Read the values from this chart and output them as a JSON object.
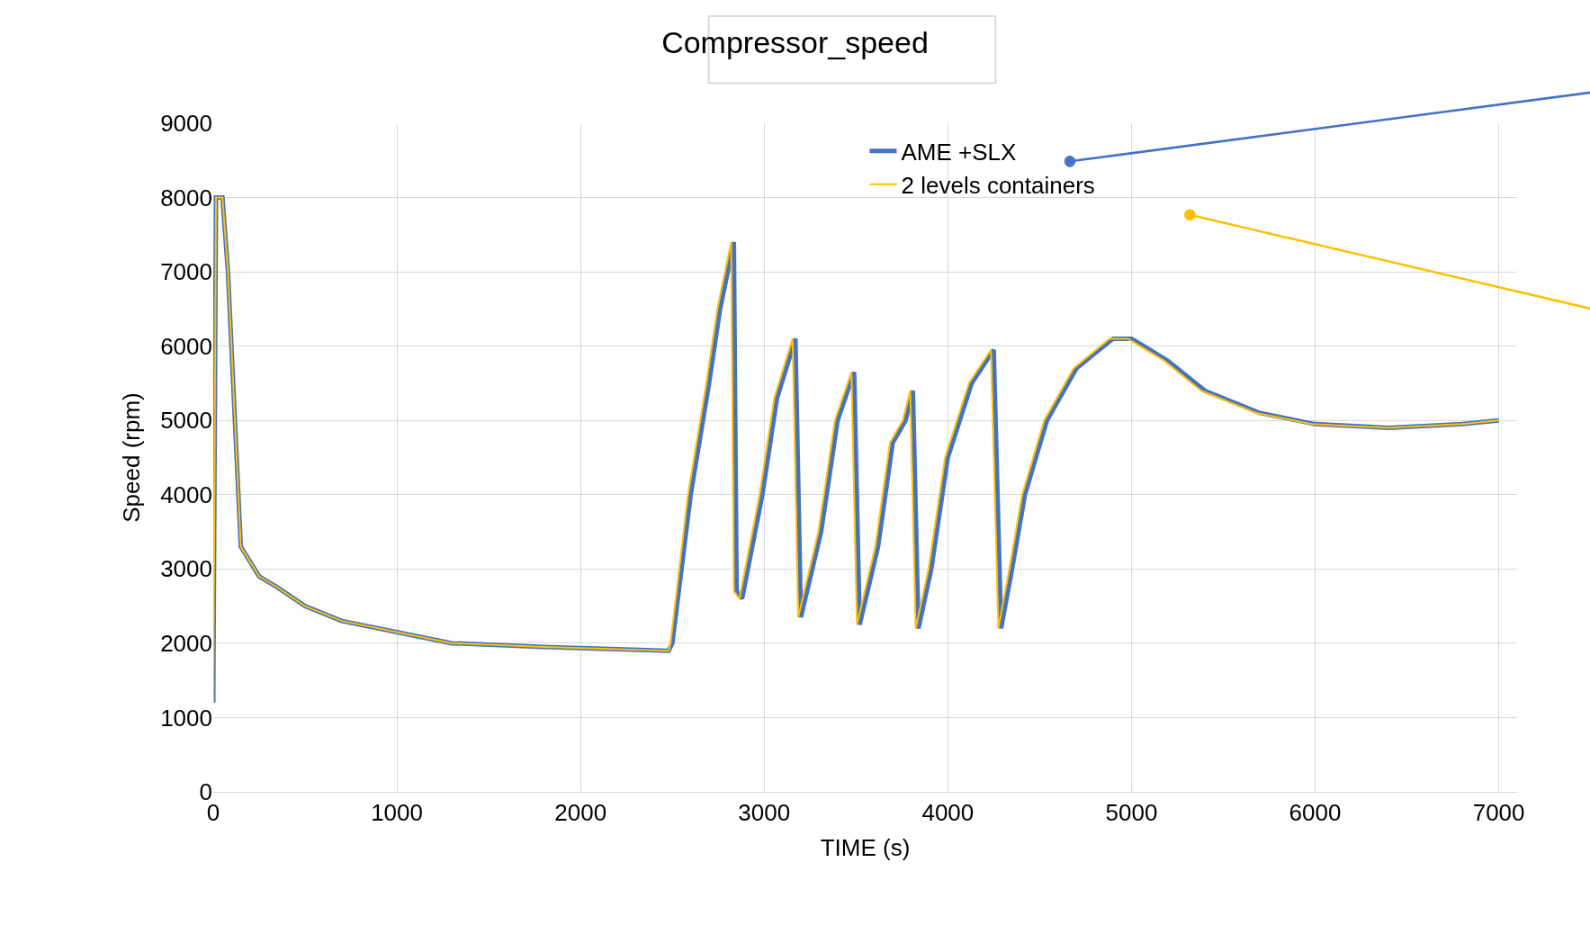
{
  "chart_data": {
    "type": "line",
    "title": "Compressor_speed",
    "xlabel": "TIME (s)",
    "ylabel": "Speed (rpm)",
    "series": [
      {
        "name": "AME +SLX",
        "color": "#4472c4",
        "x": [
          0,
          15,
          50,
          80,
          150,
          250,
          350,
          500,
          700,
          1000,
          1300,
          1800,
          2480,
          2500,
          2600,
          2700,
          2760,
          2835,
          2850,
          2880,
          2990,
          3070,
          3170,
          3200,
          3310,
          3400,
          3490,
          3520,
          3620,
          3700,
          3770,
          3810,
          3840,
          3910,
          4000,
          4130,
          4250,
          4290,
          4350,
          4420,
          4540,
          4700,
          4900,
          5000,
          5200,
          5400,
          5700,
          6000,
          6400,
          6800,
          7000
        ],
        "values": [
          1200,
          8000,
          8000,
          7000,
          3300,
          2900,
          2750,
          2500,
          2300,
          2150,
          2000,
          1950,
          1900,
          2000,
          4000,
          5500,
          6500,
          7400,
          2700,
          2600,
          4000,
          5300,
          6100,
          2350,
          3500,
          5000,
          5650,
          2250,
          3300,
          4700,
          5000,
          5400,
          2200,
          3000,
          4500,
          5500,
          5950,
          2200,
          3000,
          4000,
          5000,
          5700,
          6100,
          6100,
          5800,
          5400,
          5100,
          4950,
          4900,
          4950,
          5000
        ]
      },
      {
        "name": "2 levels containers",
        "color": "#ffc000",
        "x": [
          0,
          15,
          50,
          80,
          150,
          250,
          350,
          500,
          700,
          1000,
          1300,
          1800,
          2480,
          2490,
          2585,
          2685,
          2745,
          2820,
          2835,
          2865,
          2975,
          3055,
          3155,
          3185,
          3295,
          3385,
          3475,
          3505,
          3605,
          3685,
          3755,
          3795,
          3825,
          3895,
          3985,
          4115,
          4235,
          4275,
          4335,
          4405,
          4525,
          4685,
          4880,
          4980,
          5180,
          5380,
          5680,
          5980,
          6400,
          6800,
          7000
        ],
        "values": [
          1200,
          8000,
          8000,
          7000,
          3300,
          2900,
          2750,
          2500,
          2300,
          2150,
          2000,
          1950,
          1900,
          2000,
          4000,
          5500,
          6500,
          7400,
          2700,
          2600,
          4000,
          5300,
          6100,
          2350,
          3500,
          5000,
          5650,
          2250,
          3300,
          4700,
          5000,
          5400,
          2200,
          3000,
          4500,
          5500,
          5950,
          2200,
          3000,
          4000,
          5000,
          5700,
          6100,
          6100,
          5800,
          5400,
          5100,
          4950,
          4900,
          4950,
          5000
        ]
      }
    ],
    "xlim": [
      0,
      7100
    ],
    "xticks": [
      0,
      1000,
      2000,
      3000,
      4000,
      5000,
      6000,
      7000
    ],
    "ylim": [
      0,
      9000
    ],
    "yticks": [
      0,
      1000,
      2000,
      3000,
      4000,
      5000,
      6000,
      7000,
      8000,
      9000
    ],
    "grid": true,
    "legend": "top",
    "marker": "none",
    "line_style": "solid"
  }
}
